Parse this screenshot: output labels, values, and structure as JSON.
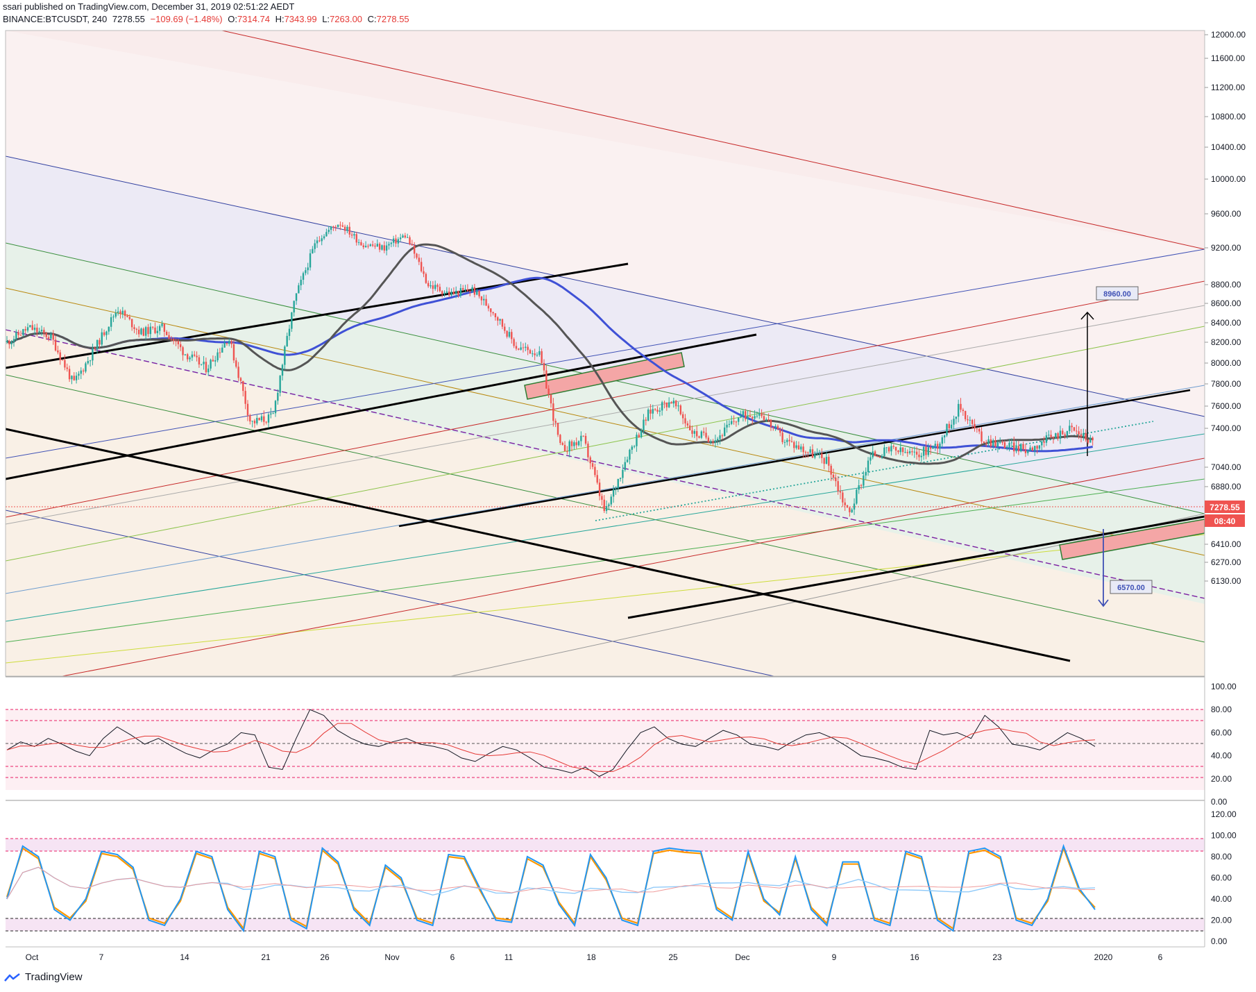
{
  "header": {
    "publish_line": "ssari published on TradingView.com, December 31, 2019 02:51:22 AEDT",
    "symbol": "BINANCE:BTCUSDT, 240",
    "last": "7278.55",
    "change": "−109.69 (−1.48%)",
    "ohlc": {
      "o_label": "O:",
      "o": "7314.74",
      "h_label": "H:",
      "h": "7343.99",
      "l_label": "L:",
      "l": "7263.00",
      "c_label": "C:",
      "c": "7278.55"
    }
  },
  "footer": {
    "logo_text": "TradingView"
  },
  "colors": {
    "up": "#26a69a",
    "down": "#ef5350",
    "ma_blue": "#3f51d6",
    "ma_dark": "#555555",
    "price_label": "#ef5350",
    "rsi_line": "#131722",
    "stoch_k": "#2196f3",
    "stoch_d": "#ff9800"
  },
  "chart_data": [
    {
      "type": "candlestick",
      "title": "BINANCE:BTCUSDT, 240",
      "y_axis_side": "right",
      "y_ticks": [
        "12000.00",
        "11600.00",
        "11200.00",
        "10800.00",
        "10400.00",
        "10000.00",
        "9600.00",
        "9200.00",
        "8800.00",
        "8600.00",
        "8400.00",
        "8200.00",
        "8000.00",
        "7800.00",
        "7600.00",
        "7400.00",
        "7040.00",
        "6880.00",
        "6720.00",
        "6570.00",
        "6410.00",
        "6270.00",
        "6130.00"
      ],
      "x_ticks": [
        "Oct",
        "7",
        "14",
        "21",
        "26",
        "Nov",
        "6",
        "11",
        "18",
        "25",
        "Dec",
        "9",
        "16",
        "23",
        "2020",
        "6"
      ],
      "price_path": [
        {
          "x": "Sep 30",
          "y": 8200
        },
        {
          "x": "Oct 1",
          "y": 8350
        },
        {
          "x": "Oct 3",
          "y": 8250
        },
        {
          "x": "Oct 6",
          "y": 7800
        },
        {
          "x": "Oct 7",
          "y": 8150
        },
        {
          "x": "Oct 9",
          "y": 8550
        },
        {
          "x": "Oct 11",
          "y": 8300
        },
        {
          "x": "Oct 14",
          "y": 8350
        },
        {
          "x": "Oct 17",
          "y": 8100
        },
        {
          "x": "Oct 20",
          "y": 7950
        },
        {
          "x": "Oct 21",
          "y": 8250
        },
        {
          "x": "Oct 23",
          "y": 7450
        },
        {
          "x": "Oct 24",
          "y": 7500
        },
        {
          "x": "Oct 25",
          "y": 8650
        },
        {
          "x": "Oct 26",
          "y": 9300
        },
        {
          "x": "Oct 27",
          "y": 9500
        },
        {
          "x": "Oct 29",
          "y": 9250
        },
        {
          "x": "Nov 1",
          "y": 9200
        },
        {
          "x": "Nov 6",
          "y": 9350
        },
        {
          "x": "Nov 8",
          "y": 8800
        },
        {
          "x": "Nov 11",
          "y": 8700
        },
        {
          "x": "Nov 13",
          "y": 8750
        },
        {
          "x": "Nov 15",
          "y": 8500
        },
        {
          "x": "Nov 18",
          "y": 8150
        },
        {
          "x": "Nov 20",
          "y": 8100
        },
        {
          "x": "Nov 22",
          "y": 7200
        },
        {
          "x": "Nov 23",
          "y": 7300
        },
        {
          "x": "Nov 25",
          "y": 6650
        },
        {
          "x": "Nov 26",
          "y": 7150
        },
        {
          "x": "Nov 28",
          "y": 7550
        },
        {
          "x": "Nov 29",
          "y": 7650
        },
        {
          "x": "Dec 1",
          "y": 7350
        },
        {
          "x": "Dec 4",
          "y": 7300
        },
        {
          "x": "Dec 6",
          "y": 7500
        },
        {
          "x": "Dec 8",
          "y": 7550
        },
        {
          "x": "Dec 10",
          "y": 7300
        },
        {
          "x": "Dec 12",
          "y": 7200
        },
        {
          "x": "Dec 14",
          "y": 7100
        },
        {
          "x": "Dec 17",
          "y": 6650
        },
        {
          "x": "Dec 18",
          "y": 7150
        },
        {
          "x": "Dec 19",
          "y": 7200
        },
        {
          "x": "Dec 21",
          "y": 7150
        },
        {
          "x": "Dec 23",
          "y": 7250
        },
        {
          "x": "Dec 23b",
          "y": 7600
        },
        {
          "x": "Dec 24",
          "y": 7300
        },
        {
          "x": "Dec 26",
          "y": 7250
        },
        {
          "x": "Dec 27",
          "y": 7200
        },
        {
          "x": "Dec 28",
          "y": 7300
        },
        {
          "x": "Dec 29",
          "y": 7400
        },
        {
          "x": "Dec 30",
          "y": 7278.55
        }
      ],
      "annotations": {
        "last_price": "7278.55",
        "countdown": "08:40",
        "target_up": "8960.00",
        "target_down": "6570.00"
      }
    },
    {
      "type": "line",
      "title": "",
      "y_ticks": [
        "100.00",
        "80.00",
        "60.00",
        "40.00",
        "20.00",
        "0.00"
      ],
      "ylim": [
        0,
        100
      ],
      "bands": [
        70,
        30
      ],
      "mid": 50,
      "outer": [
        80,
        20
      ],
      "series": [
        {
          "values": [
            45,
            52,
            48,
            55,
            50,
            44,
            40,
            55,
            65,
            58,
            50,
            55,
            48,
            42,
            38,
            45,
            50,
            60,
            58,
            30,
            28,
            55,
            80,
            75,
            62,
            55,
            50,
            48,
            52,
            55,
            50,
            48,
            45,
            38,
            35,
            42,
            48,
            45,
            38,
            30,
            28,
            25,
            30,
            22,
            28,
            45,
            60,
            65,
            55,
            50,
            48,
            55,
            62,
            58,
            50,
            48,
            45,
            52,
            58,
            60,
            55,
            48,
            40,
            38,
            35,
            30,
            28,
            62,
            58,
            60,
            55,
            75,
            65,
            50,
            48,
            45,
            52,
            60,
            55,
            48
          ]
        }
      ]
    },
    {
      "type": "line",
      "title": "",
      "y_ticks": [
        "120.00",
        "100.00",
        "80.00",
        "60.00",
        "40.00",
        "20.00",
        "0.00"
      ],
      "ylim": [
        0,
        120
      ],
      "bands": [
        90,
        80,
        20,
        10
      ],
      "series": [
        {
          "values": [
            40,
            90,
            80,
            30,
            20,
            40,
            85,
            82,
            70,
            20,
            15,
            40,
            85,
            80,
            30,
            10,
            85,
            80,
            20,
            12,
            88,
            75,
            30,
            15,
            72,
            60,
            20,
            15,
            82,
            80,
            50,
            20,
            18,
            80,
            72,
            35,
            15,
            82,
            60,
            20,
            15,
            85,
            88,
            86,
            85,
            30,
            20,
            85,
            40,
            25,
            80,
            30,
            15,
            75,
            75,
            20,
            15,
            85,
            80,
            20,
            10,
            85,
            88,
            80,
            20,
            15,
            40,
            90,
            50,
            30
          ]
        },
        {
          "values": [
            42,
            88,
            78,
            32,
            22,
            38,
            83,
            80,
            68,
            22,
            17,
            38,
            83,
            78,
            32,
            12,
            83,
            78,
            22,
            14,
            86,
            73,
            32,
            17,
            70,
            58,
            22,
            17,
            80,
            78,
            48,
            22,
            20,
            78,
            70,
            37,
            17,
            80,
            58,
            22,
            17,
            83,
            86,
            84,
            83,
            32,
            22,
            83,
            38,
            27,
            78,
            32,
            17,
            73,
            73,
            22,
            17,
            83,
            78,
            22,
            12,
            83,
            86,
            78,
            22,
            17,
            38,
            88,
            48,
            32
          ]
        }
      ]
    }
  ]
}
